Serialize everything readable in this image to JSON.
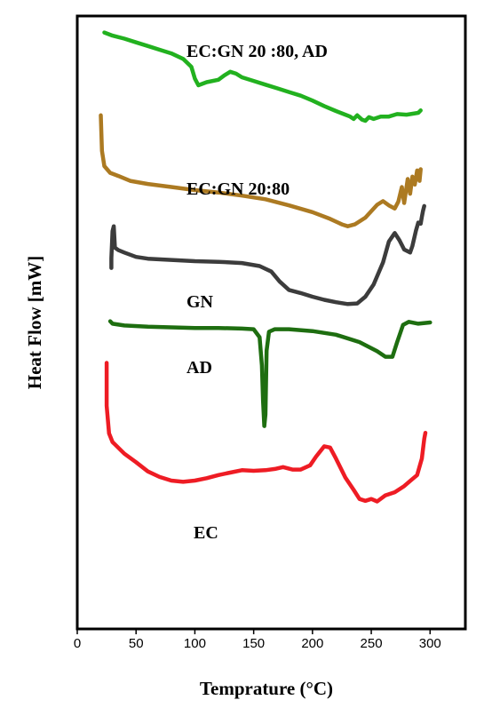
{
  "chart_data": {
    "type": "line",
    "xlabel": "Temprature (°C)",
    "ylabel": "Heat Flow [mW]",
    "xlim": [
      0,
      330
    ],
    "ylim": [
      0,
      100
    ],
    "x_ticks": [
      "0",
      "50",
      "100",
      "150",
      "200",
      "250",
      "300"
    ],
    "x_tick_values": [
      0,
      50,
      100,
      150,
      200,
      250,
      300
    ],
    "grid": false,
    "legend": "none",
    "series": [
      {
        "name": "EC:GN 20 :80, AD",
        "color": "#22b11f",
        "points": [
          [
            23,
            97.3
          ],
          [
            30,
            96.8
          ],
          [
            40,
            96.3
          ],
          [
            50,
            95.7
          ],
          [
            60,
            95.1
          ],
          [
            70,
            94.5
          ],
          [
            80,
            93.9
          ],
          [
            90,
            93.0
          ],
          [
            97,
            91.7
          ],
          [
            100,
            89.8
          ],
          [
            103,
            88.7
          ],
          [
            110,
            89.2
          ],
          [
            120,
            89.6
          ],
          [
            125,
            90.3
          ],
          [
            130,
            90.9
          ],
          [
            135,
            90.6
          ],
          [
            140,
            90.0
          ],
          [
            150,
            89.4
          ],
          [
            160,
            88.8
          ],
          [
            170,
            88.2
          ],
          [
            180,
            87.6
          ],
          [
            190,
            87.0
          ],
          [
            200,
            86.2
          ],
          [
            210,
            85.3
          ],
          [
            220,
            84.5
          ],
          [
            228,
            83.9
          ],
          [
            232,
            83.6
          ],
          [
            235,
            83.2
          ],
          [
            238,
            83.8
          ],
          [
            242,
            83.1
          ],
          [
            245,
            82.9
          ],
          [
            248,
            83.5
          ],
          [
            252,
            83.2
          ],
          [
            258,
            83.6
          ],
          [
            265,
            83.6
          ],
          [
            272,
            84.0
          ],
          [
            280,
            83.9
          ],
          [
            290,
            84.2
          ],
          [
            292,
            84.6
          ]
        ]
      },
      {
        "name": "EC:GN 20:80",
        "color": "#ac7a22",
        "points": [
          [
            20,
            83.8
          ],
          [
            21,
            78.0
          ],
          [
            23,
            75.5
          ],
          [
            28,
            74.4
          ],
          [
            35,
            73.9
          ],
          [
            45,
            73.1
          ],
          [
            60,
            72.6
          ],
          [
            80,
            72.1
          ],
          [
            100,
            71.6
          ],
          [
            120,
            71.2
          ],
          [
            140,
            70.7
          ],
          [
            160,
            70.1
          ],
          [
            180,
            69.1
          ],
          [
            200,
            68.0
          ],
          [
            215,
            66.9
          ],
          [
            225,
            66.0
          ],
          [
            230,
            65.7
          ],
          [
            236,
            66.0
          ],
          [
            245,
            67.1
          ],
          [
            255,
            69.2
          ],
          [
            260,
            69.8
          ],
          [
            265,
            69.1
          ],
          [
            270,
            68.6
          ],
          [
            273,
            69.7
          ],
          [
            276,
            72.1
          ],
          [
            278,
            69.5
          ],
          [
            281,
            73.4
          ],
          [
            283,
            71.0
          ],
          [
            285,
            73.8
          ],
          [
            287,
            72.5
          ],
          [
            289,
            74.8
          ],
          [
            291,
            73.1
          ],
          [
            292,
            75.0
          ]
        ]
      },
      {
        "name": "GN",
        "color": "#3c3c3c",
        "points": [
          [
            29,
            58.9
          ],
          [
            29,
            60.5
          ],
          [
            30,
            64.9
          ],
          [
            31,
            65.7
          ],
          [
            32,
            62.2
          ],
          [
            35,
            61.8
          ],
          [
            40,
            61.4
          ],
          [
            50,
            60.7
          ],
          [
            60,
            60.4
          ],
          [
            80,
            60.2
          ],
          [
            100,
            60.0
          ],
          [
            120,
            59.9
          ],
          [
            140,
            59.7
          ],
          [
            155,
            59.2
          ],
          [
            165,
            58.3
          ],
          [
            172,
            56.7
          ],
          [
            180,
            55.3
          ],
          [
            190,
            54.8
          ],
          [
            200,
            54.2
          ],
          [
            210,
            53.7
          ],
          [
            220,
            53.3
          ],
          [
            230,
            53.0
          ],
          [
            238,
            53.1
          ],
          [
            245,
            54.2
          ],
          [
            252,
            56.2
          ],
          [
            260,
            59.8
          ],
          [
            265,
            63.2
          ],
          [
            270,
            64.6
          ],
          [
            274,
            63.4
          ],
          [
            278,
            61.9
          ],
          [
            283,
            61.4
          ],
          [
            285,
            62.5
          ],
          [
            288,
            65.0
          ],
          [
            290,
            66.3
          ],
          [
            292,
            66.1
          ],
          [
            293,
            67.2
          ],
          [
            294,
            68.2
          ],
          [
            295,
            69.0
          ]
        ]
      },
      {
        "name": "AD",
        "color": "#1e6e10",
        "points": [
          [
            28,
            50.2
          ],
          [
            30,
            49.8
          ],
          [
            40,
            49.5
          ],
          [
            60,
            49.3
          ],
          [
            80,
            49.2
          ],
          [
            100,
            49.1
          ],
          [
            120,
            49.1
          ],
          [
            140,
            49.0
          ],
          [
            150,
            48.9
          ],
          [
            155,
            47.6
          ],
          [
            157,
            43.0
          ],
          [
            158,
            37.2
          ],
          [
            159,
            33.1
          ],
          [
            160,
            35.0
          ],
          [
            161,
            45.4
          ],
          [
            163,
            48.5
          ],
          [
            168,
            48.9
          ],
          [
            180,
            48.9
          ],
          [
            200,
            48.6
          ],
          [
            220,
            48.0
          ],
          [
            240,
            46.8
          ],
          [
            255,
            45.3
          ],
          [
            262,
            44.4
          ],
          [
            268,
            44.4
          ],
          [
            272,
            46.8
          ],
          [
            277,
            49.6
          ],
          [
            282,
            50.1
          ],
          [
            290,
            49.8
          ],
          [
            300,
            50.0
          ]
        ]
      },
      {
        "name": "EC",
        "color": "#ee1c24",
        "points": [
          [
            25,
            43.4
          ],
          [
            25,
            36.4
          ],
          [
            27,
            31.9
          ],
          [
            30,
            30.5
          ],
          [
            40,
            28.6
          ],
          [
            50,
            27.2
          ],
          [
            60,
            25.7
          ],
          [
            70,
            24.8
          ],
          [
            80,
            24.2
          ],
          [
            90,
            24.0
          ],
          [
            100,
            24.2
          ],
          [
            110,
            24.6
          ],
          [
            120,
            25.1
          ],
          [
            130,
            25.5
          ],
          [
            140,
            25.9
          ],
          [
            150,
            25.8
          ],
          [
            160,
            25.9
          ],
          [
            168,
            26.1
          ],
          [
            175,
            26.4
          ],
          [
            183,
            26.0
          ],
          [
            190,
            26.0
          ],
          [
            198,
            26.7
          ],
          [
            203,
            28.1
          ],
          [
            210,
            29.8
          ],
          [
            215,
            29.6
          ],
          [
            220,
            27.8
          ],
          [
            228,
            24.7
          ],
          [
            235,
            22.7
          ],
          [
            240,
            21.2
          ],
          [
            245,
            20.9
          ],
          [
            250,
            21.2
          ],
          [
            255,
            20.8
          ],
          [
            262,
            21.8
          ],
          [
            270,
            22.3
          ],
          [
            278,
            23.3
          ],
          [
            284,
            24.3
          ],
          [
            289,
            25.1
          ],
          [
            293,
            27.8
          ],
          [
            295,
            31.0
          ],
          [
            296,
            32.0
          ]
        ]
      }
    ]
  }
}
